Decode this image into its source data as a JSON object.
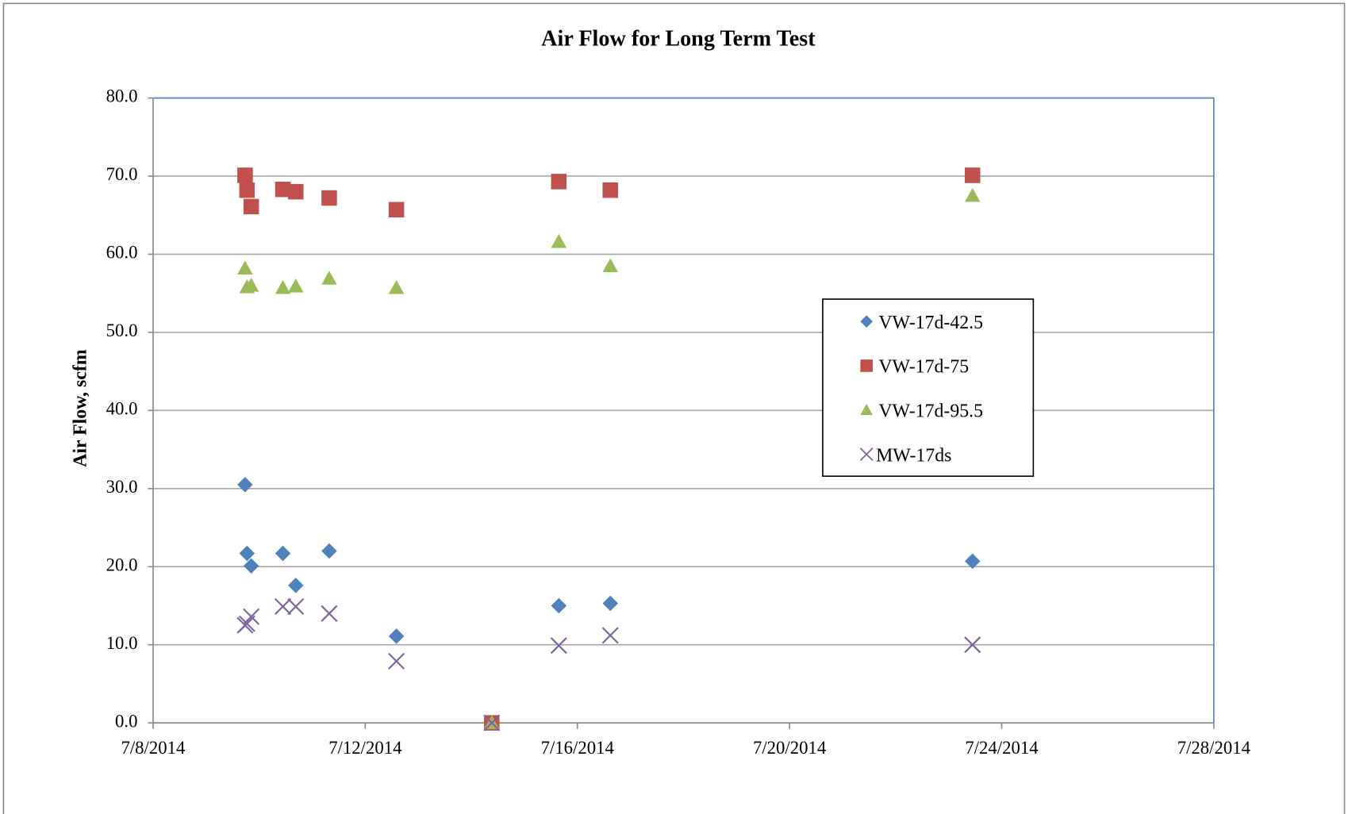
{
  "chart_data": {
    "type": "scatter",
    "title": "Air Flow for Long Term Test",
    "y_label": "Air Flow, scfm",
    "x": [
      "2014-07-09T17:37",
      "2014-07-09T18:30",
      "2014-07-09T20:24",
      "2014-07-10T10:44",
      "2014-07-10T16:34",
      "2014-07-11T07:42",
      "2014-07-12T14:06",
      "2014-07-14T09:15",
      "2014-07-15T15:36",
      "2014-07-16T14:54",
      "2014-07-23T10:48"
    ],
    "series": [
      {
        "name": "VW-17d-42.5",
        "color": "#4f81bd",
        "marker": "diamond",
        "values": [
          30.5,
          21.7,
          20.1,
          21.7,
          17.6,
          22.0,
          11.1,
          0,
          15.0,
          15.3,
          20.7
        ]
      },
      {
        "name": "VW-17d-75",
        "color": "#c0504d",
        "marker": "square",
        "values": [
          70.1,
          68.2,
          66.1,
          68.3,
          68.0,
          67.2,
          65.7,
          0,
          69.3,
          68.2,
          70.1
        ]
      },
      {
        "name": "VW-17d-95.5",
        "color": "#9bbb59",
        "marker": "triangle",
        "values": [
          58.2,
          55.8,
          56.0,
          55.7,
          55.9,
          56.9,
          55.7,
          0,
          61.6,
          58.5,
          67.5
        ]
      },
      {
        "name": "MW-17ds",
        "color": "#8064a2",
        "marker": "x",
        "values": [
          12.5,
          12.7,
          13.6,
          14.9,
          14.9,
          14.0,
          7.9,
          0,
          9.9,
          11.2,
          10.0
        ]
      }
    ],
    "xlim": [
      "2014-07-08T00:00",
      "2014-07-28T00:00"
    ],
    "xticks": [
      {
        "value": "2014-07-08T00:00",
        "label": "7/8/2014"
      },
      {
        "value": "2014-07-12T00:00",
        "label": "7/12/2014"
      },
      {
        "value": "2014-07-16T00:00",
        "label": "7/16/2014"
      },
      {
        "value": "2014-07-20T00:00",
        "label": "7/20/2014"
      },
      {
        "value": "2014-07-24T00:00",
        "label": "7/24/2014"
      },
      {
        "value": "2014-07-28T00:00",
        "label": "7/28/2014"
      }
    ],
    "ylim": [
      0,
      80
    ],
    "yticks": [
      {
        "value": 0,
        "label": "0.0"
      },
      {
        "value": 10,
        "label": "10.0"
      },
      {
        "value": 20,
        "label": "20.0"
      },
      {
        "value": 30,
        "label": "30.0"
      },
      {
        "value": 40,
        "label": "40.0"
      },
      {
        "value": 50,
        "label": "50.0"
      },
      {
        "value": 60,
        "label": "60.0"
      },
      {
        "value": 70,
        "label": "70.0"
      },
      {
        "value": 80,
        "label": "80.0"
      }
    ],
    "grid": true,
    "legend": "right"
  }
}
